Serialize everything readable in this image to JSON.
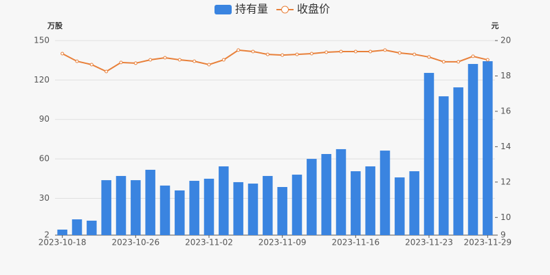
{
  "chart_data": {
    "type": "bar_line",
    "y_label": "万股",
    "y2_label": "元",
    "categories": [
      "2023-10-18",
      null,
      null,
      null,
      null,
      "2023-10-26",
      null,
      null,
      null,
      null,
      "2023-11-02",
      null,
      null,
      null,
      null,
      "2023-11-09",
      null,
      null,
      null,
      null,
      "2023-11-16",
      null,
      null,
      null,
      null,
      "2023-11-23",
      null,
      null,
      null,
      "2023-11-29"
    ],
    "series": [
      {
        "name": "持有量",
        "type": "bar",
        "color": "#3a84e0",
        "values": [
          6.2,
          14,
          13,
          43.8,
          47,
          43.8,
          51.7,
          39.7,
          36,
          43.3,
          44.9,
          54.3,
          42.3,
          41.2,
          47,
          38.6,
          48,
          60,
          63.7,
          67.4,
          50.6,
          54.3,
          66.3,
          45.9,
          50.6,
          125.4,
          107.6,
          114.4,
          132.2,
          134.3
        ]
      },
      {
        "name": "收盘价",
        "type": "line",
        "axis": "y2",
        "color": "#e8803a",
        "values": [
          19.26,
          18.83,
          18.64,
          18.25,
          18.76,
          18.72,
          18.91,
          19.03,
          18.91,
          18.83,
          18.64,
          18.91,
          19.46,
          19.38,
          19.22,
          19.18,
          19.22,
          19.26,
          19.34,
          19.38,
          19.38,
          19.38,
          19.46,
          19.3,
          19.22,
          19.07,
          18.8,
          18.8,
          19.11,
          18.91
        ]
      }
    ],
    "ylim": [
      2,
      150
    ],
    "yticks": [
      2,
      30,
      60,
      90,
      120,
      150
    ],
    "y2lim": [
      9,
      20
    ],
    "y2ticks": [
      9,
      10,
      12,
      14,
      16,
      18,
      20
    ],
    "grid": true
  }
}
